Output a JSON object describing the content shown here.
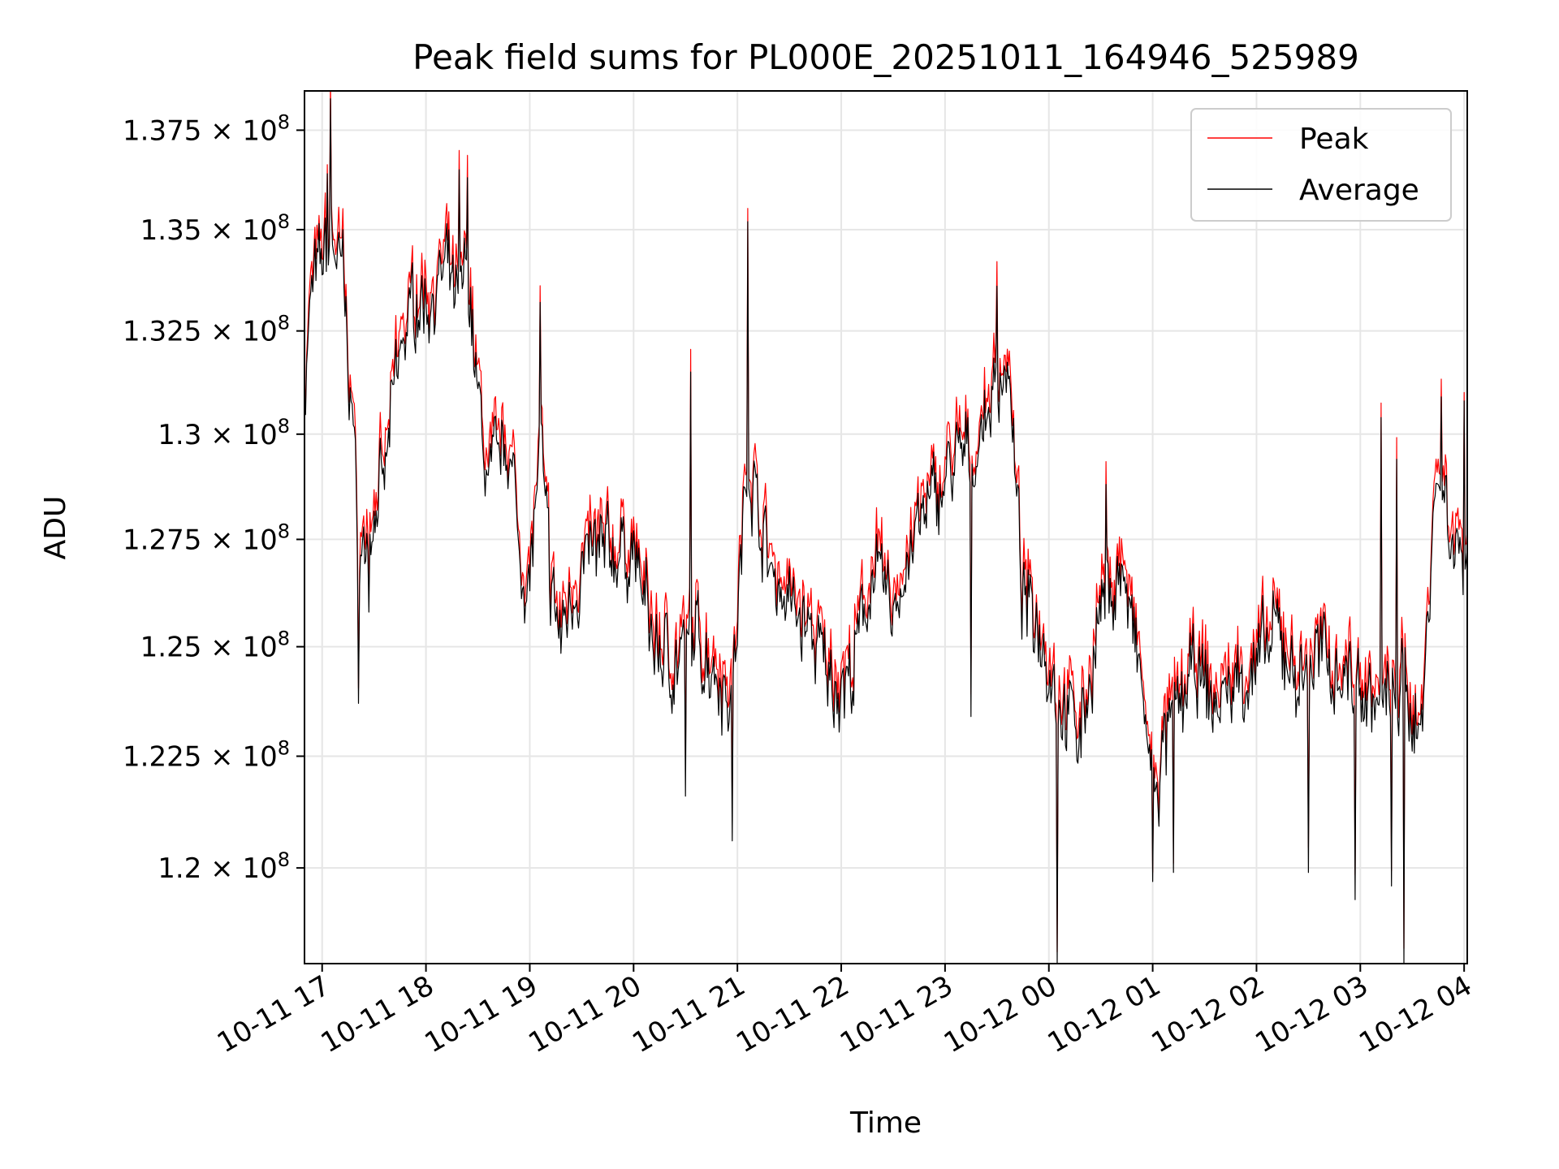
{
  "chart_data": {
    "type": "line",
    "title": "Peak field sums for PL000E_20251011_164946_525989",
    "xlabel": "Time",
    "ylabel": "ADU",
    "grid": true,
    "legend_position": "top-right",
    "x_axis": {
      "unit": "hours since 2025-10-11 17:00",
      "xlim": [
        -0.17,
        11.03
      ],
      "ticks": [
        {
          "value": 0,
          "label": "10-11 17"
        },
        {
          "value": 1,
          "label": "10-11 18"
        },
        {
          "value": 2,
          "label": "10-11 19"
        },
        {
          "value": 3,
          "label": "10-11 20"
        },
        {
          "value": 4,
          "label": "10-11 21"
        },
        {
          "value": 5,
          "label": "10-11 22"
        },
        {
          "value": 6,
          "label": "10-11 23"
        },
        {
          "value": 7,
          "label": "10-12 00"
        },
        {
          "value": 8,
          "label": "10-12 01"
        },
        {
          "value": 9,
          "label": "10-12 02"
        },
        {
          "value": 10,
          "label": "10-12 03"
        },
        {
          "value": 11,
          "label": "10-12 04"
        }
      ]
    },
    "y_axis": {
      "scale": "log",
      "ylim": [
        117900000,
        138500000
      ],
      "ticks": [
        {
          "value": 120000000,
          "mantissa": "1.2",
          "exponent": "8"
        },
        {
          "value": 122500000,
          "mantissa": "1.225",
          "exponent": "8"
        },
        {
          "value": 125000000,
          "mantissa": "1.25",
          "exponent": "8"
        },
        {
          "value": 127500000,
          "mantissa": "1.275",
          "exponent": "8"
        },
        {
          "value": 130000000,
          "mantissa": "1.3",
          "exponent": "8"
        },
        {
          "value": 132500000,
          "mantissa": "1.325",
          "exponent": "8"
        },
        {
          "value": 135000000,
          "mantissa": "1.35",
          "exponent": "8"
        },
        {
          "value": 137500000,
          "mantissa": "1.375",
          "exponent": "8"
        }
      ],
      "times_sign": "×",
      "base": "10"
    },
    "series": [
      {
        "name": "Peak",
        "color": "#ff0000"
      },
      {
        "name": "Average",
        "color": "#000000"
      }
    ],
    "generator": {
      "step_hours": 0.01,
      "peak_offset": 450000,
      "anchors": [
        [
          -0.17,
          131000000
        ],
        [
          -0.1,
          133500000
        ],
        [
          0.0,
          134200000
        ],
        [
          0.1,
          134800000
        ],
        [
          0.2,
          133600000
        ],
        [
          0.3,
          130200000
        ],
        [
          0.35,
          126800000
        ],
        [
          0.4,
          127200000
        ],
        [
          0.5,
          128200000
        ],
        [
          0.6,
          128800000
        ],
        [
          0.7,
          131200000
        ],
        [
          0.8,
          132500000
        ],
        [
          0.9,
          133300000
        ],
        [
          1.0,
          133200000
        ],
        [
          1.1,
          133500000
        ],
        [
          1.2,
          134000000
        ],
        [
          1.3,
          133000000
        ],
        [
          1.4,
          134200000
        ],
        [
          1.5,
          130800000
        ],
        [
          1.6,
          128800000
        ],
        [
          1.7,
          129400000
        ],
        [
          1.8,
          129900000
        ],
        [
          1.9,
          127200000
        ],
        [
          2.0,
          126400000
        ],
        [
          2.1,
          129800000
        ],
        [
          2.2,
          126400000
        ],
        [
          2.3,
          125200000
        ],
        [
          2.4,
          126300000
        ],
        [
          2.6,
          127100000
        ],
        [
          2.8,
          127200000
        ],
        [
          3.0,
          127200000
        ],
        [
          3.2,
          125000000
        ],
        [
          3.4,
          124600000
        ],
        [
          3.6,
          125200000
        ],
        [
          3.8,
          124500000
        ],
        [
          3.95,
          123800000
        ],
        [
          4.05,
          127500000
        ],
        [
          4.1,
          129500000
        ],
        [
          4.3,
          126900000
        ],
        [
          4.5,
          126000000
        ],
        [
          4.7,
          125300000
        ],
        [
          4.9,
          124200000
        ],
        [
          5.1,
          124200000
        ],
        [
          5.3,
          126800000
        ],
        [
          5.5,
          125800000
        ],
        [
          5.7,
          127500000
        ],
        [
          5.9,
          128500000
        ],
        [
          6.1,
          129300000
        ],
        [
          6.3,
          129600000
        ],
        [
          6.5,
          131300000
        ],
        [
          6.6,
          131800000
        ],
        [
          6.75,
          126000000
        ],
        [
          6.9,
          125600000
        ],
        [
          7.1,
          123800000
        ],
        [
          7.3,
          123000000
        ],
        [
          7.5,
          125800000
        ],
        [
          7.7,
          126800000
        ],
        [
          7.9,
          124000000
        ],
        [
          8.0,
          121500000
        ],
        [
          8.2,
          123400000
        ],
        [
          8.4,
          124400000
        ],
        [
          8.6,
          123600000
        ],
        [
          8.8,
          124200000
        ],
        [
          9.0,
          124500000
        ],
        [
          9.2,
          125300000
        ],
        [
          9.4,
          124200000
        ],
        [
          9.6,
          124800000
        ],
        [
          9.8,
          124500000
        ],
        [
          10.0,
          124100000
        ],
        [
          10.2,
          123600000
        ],
        [
          10.4,
          124000000
        ],
        [
          10.6,
          123200000
        ],
        [
          10.7,
          128400000
        ],
        [
          10.8,
          128800000
        ],
        [
          10.9,
          127300000
        ],
        [
          11.03,
          127200000
        ]
      ],
      "spikes": [
        [
          0.08,
          138300000
        ],
        [
          0.05,
          136400000
        ],
        [
          0.35,
          123700000
        ],
        [
          0.45,
          125800000
        ],
        [
          1.4,
          136300000
        ],
        [
          1.32,
          136500000
        ],
        [
          3.55,
          131500000
        ],
        [
          4.1,
          135200000
        ],
        [
          3.95,
          120600000
        ],
        [
          3.5,
          121600000
        ],
        [
          6.5,
          133600000
        ],
        [
          6.25,
          123400000
        ],
        [
          7.08,
          117900000
        ],
        [
          8.0,
          119700000
        ],
        [
          8.2,
          119900000
        ],
        [
          9.5,
          119900000
        ],
        [
          9.95,
          119300000
        ],
        [
          10.3,
          119600000
        ],
        [
          10.42,
          117900000
        ],
        [
          10.35,
          129400000
        ],
        [
          10.78,
          130900000
        ],
        [
          10.2,
          130400000
        ],
        [
          11.0,
          130800000
        ],
        [
          7.55,
          128800000
        ],
        [
          2.1,
          133200000
        ],
        [
          0.2,
          135000000
        ]
      ],
      "noise": 620000,
      "seed": 7
    }
  }
}
